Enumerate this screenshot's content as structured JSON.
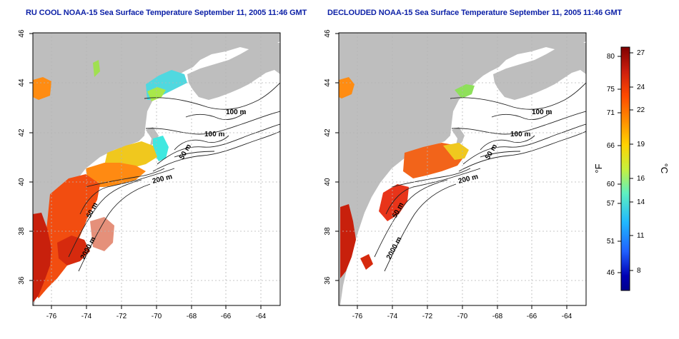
{
  "titles": {
    "left": "RU COOL NOAA-15 Sea Surface Temperature September 11, 2005 11:46 GMT",
    "right": "DECLOUDED NOAA-15 Sea Surface Temperature September 11, 2005 11:46 GMT"
  },
  "axes": {
    "x_ticks": [
      "-76",
      "-74",
      "-72",
      "-70",
      "-68",
      "-66",
      "-64"
    ],
    "y_ticks": [
      "46",
      "44",
      "42",
      "40",
      "38",
      "36"
    ]
  },
  "contours": {
    "labels_left": [
      "100 m",
      "100 m",
      "50 m",
      "200 m",
      "50 m",
      "2000 m"
    ],
    "labels_right": [
      "100 m",
      "100 m",
      "50 m",
      "200 m",
      "50 m",
      "2000 m"
    ]
  },
  "colorbar": {
    "fahrenheit_ticks": [
      "80",
      "75",
      "71",
      "66",
      "60",
      "57",
      "51",
      "46"
    ],
    "celsius_ticks": [
      "27",
      "24",
      "22",
      "19",
      "16",
      "14",
      "11",
      "8"
    ],
    "fahrenheit_unit": "°F",
    "celsius_unit": "°C",
    "colors": [
      "#7f0000",
      "#cc1f0e",
      "#ff4a00",
      "#ff8c00",
      "#ffd200",
      "#c8f03c",
      "#5ff0c0",
      "#20b8ff",
      "#2060ff",
      "#0000b4",
      "#00008c"
    ]
  },
  "colors": {
    "land": "#bebebe",
    "ocean": "#ffffff",
    "title": "#0b1fa6",
    "grid": "#b5b5b5"
  }
}
